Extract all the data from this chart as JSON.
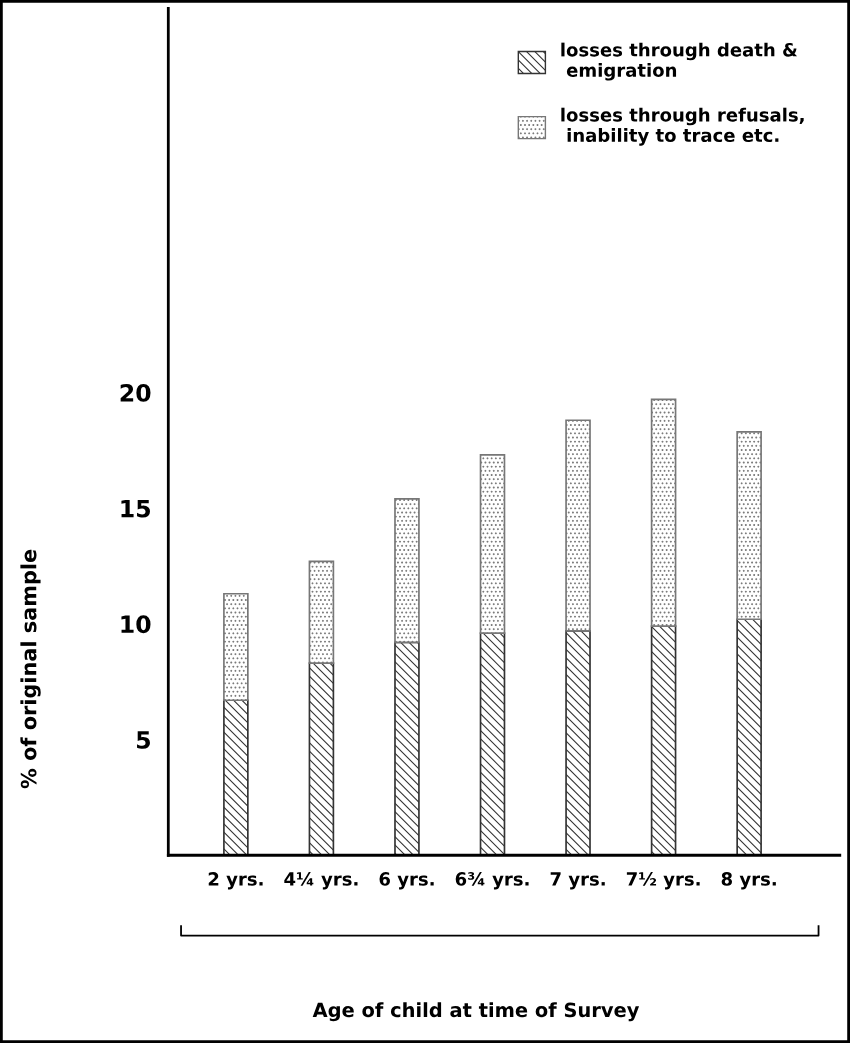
{
  "chart_data": {
    "type": "bar",
    "stacked": true,
    "annotations": [
      "Age of child at time of Survey"
    ],
    "ylabel": "% of original sample",
    "categories": [
      "2 yrs.",
      "4¼ yrs.",
      "6 yrs.",
      "6¾ yrs.",
      "7 yrs.",
      "7½ yrs.",
      "8 yrs."
    ],
    "series": [
      {
        "name": "losses through death &\n emigration",
        "color": "#333333",
        "values": [
          6.7,
          8.3,
          9.2,
          9.6,
          9.7,
          9.9,
          10.2
        ]
      },
      {
        "name": "losses through refusals,\n inability to trace etc.",
        "color": "#777777",
        "values": [
          4.6,
          4.4,
          6.2,
          7.7,
          9.1,
          9.8,
          8.1
        ]
      }
    ],
    "ylim": [
      0,
      36.6
    ],
    "yticks": [
      5,
      10,
      15,
      20
    ],
    "grid": false,
    "legend": "top right"
  }
}
